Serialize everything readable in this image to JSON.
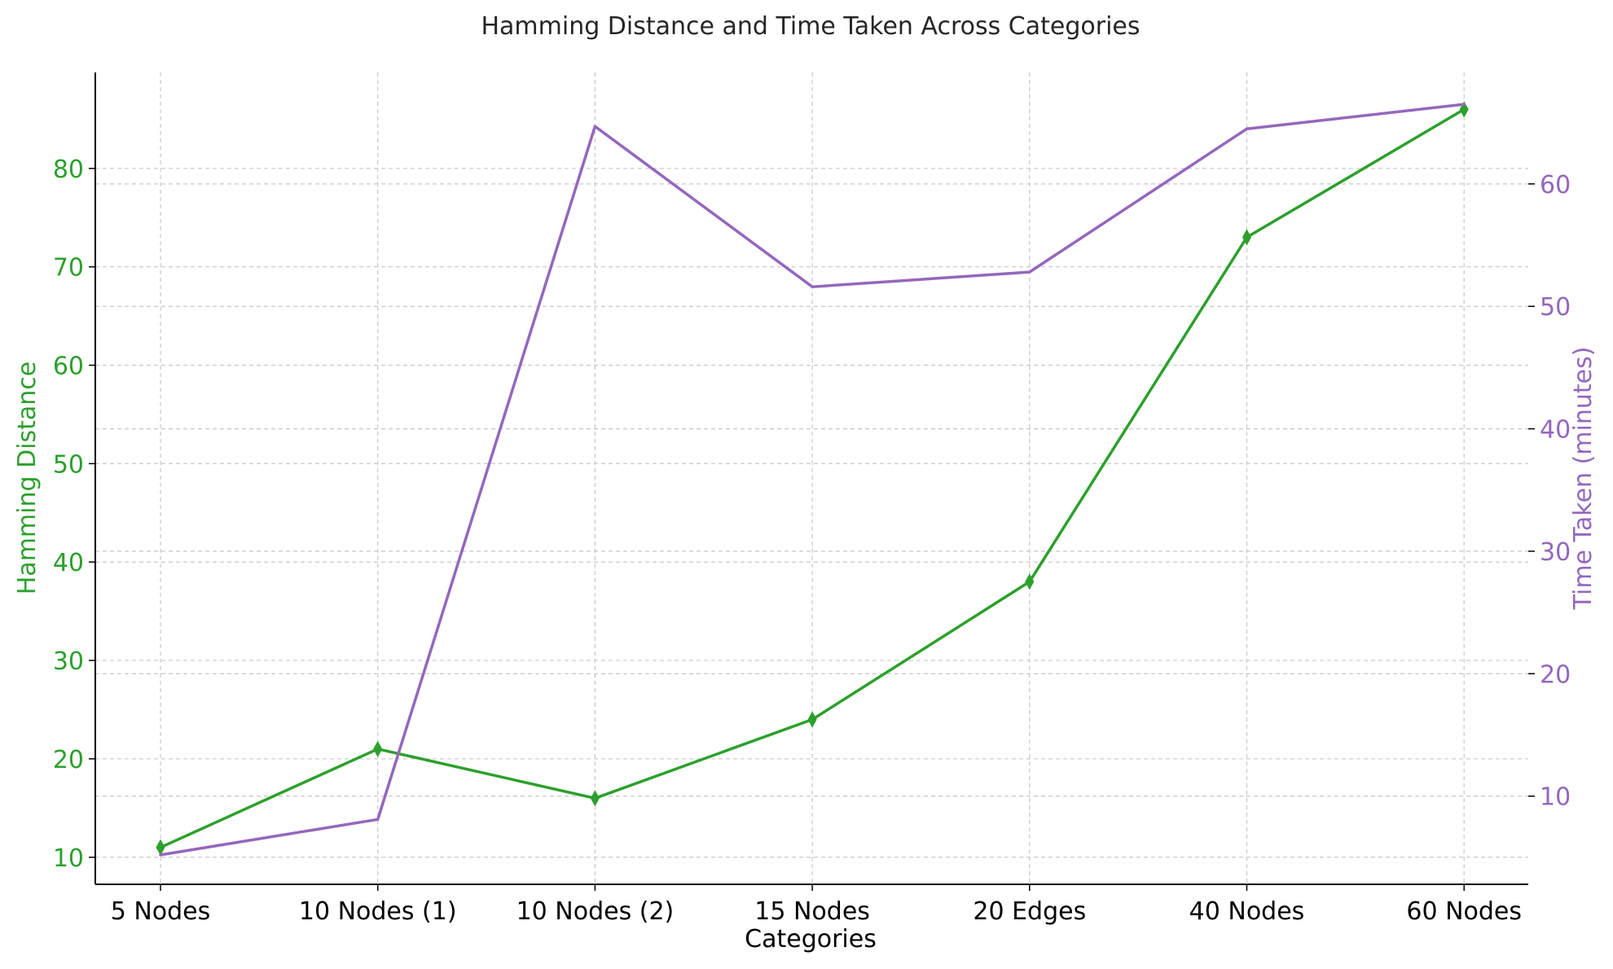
{
  "colors": {
    "hamming": "#2ca02c",
    "time": "#9467bd",
    "grid": "#c8c8c8",
    "axis": "#000000",
    "text": "#262626"
  },
  "chart_data": {
    "type": "line",
    "title": "Hamming Distance and Time Taken Across Categories",
    "xlabel": "Categories",
    "categories": [
      "5 Nodes",
      "10 Nodes (1)",
      "10 Nodes (2)",
      "15 Nodes",
      "20 Edges",
      "40 Nodes",
      "60 Nodes"
    ],
    "grid": true,
    "y_left": {
      "label": "Hamming Distance",
      "ylim": [
        7.25,
        89.75
      ],
      "ticks": [
        10,
        20,
        30,
        40,
        50,
        60,
        70,
        80
      ]
    },
    "y_right": {
      "label": "Time Taken (minutes)",
      "ylim": [
        2.8,
        69.1
      ],
      "ticks": [
        10,
        20,
        30,
        40,
        50,
        60
      ]
    },
    "series": [
      {
        "name": "Hamming Distance",
        "axis": "left",
        "marker": "thin_diamond",
        "values": [
          11,
          21,
          16,
          24,
          38,
          73,
          86
        ]
      },
      {
        "name": "Time Taken (minutes)",
        "axis": "right",
        "marker": "none",
        "values": [
          5.2,
          8.1,
          64.7,
          51.6,
          52.8,
          64.5,
          66.5
        ]
      }
    ]
  }
}
